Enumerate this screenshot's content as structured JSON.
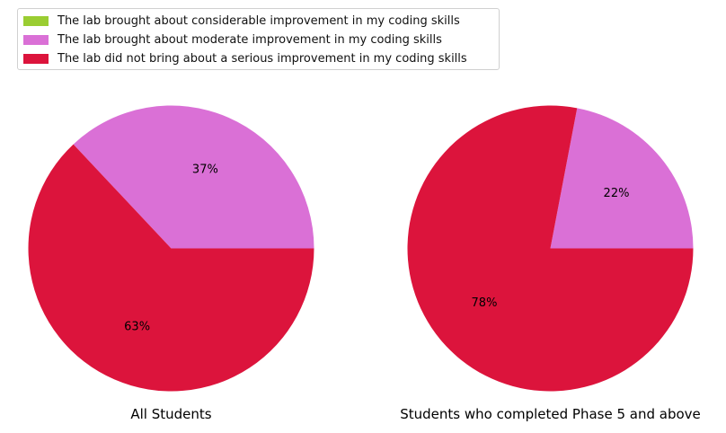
{
  "legend": {
    "items": [
      {
        "label": "The lab brought about considerable improvement in my coding skills",
        "color": "#9acd32"
      },
      {
        "label": "The lab brought about moderate improvement in my coding skills",
        "color": "#da70d6"
      },
      {
        "label": "The lab did not bring about a serious improvement in my coding skills",
        "color": "#dc143c"
      }
    ]
  },
  "chart_data": [
    {
      "type": "pie",
      "title": "All Students",
      "categories": [
        "The lab brought about considerable improvement in my coding skills",
        "The lab brought about moderate improvement in my coding skills",
        "The lab did not bring about a serious improvement in my coding skills"
      ],
      "values": [
        0,
        37,
        63
      ],
      "labels": [
        "0%",
        "37%",
        "63%"
      ],
      "colors": [
        "#9acd32",
        "#da70d6",
        "#dc143c"
      ]
    },
    {
      "type": "pie",
      "title": "Students who completed Phase 5 and above",
      "categories": [
        "The lab brought about considerable improvement in my coding skills",
        "The lab brought about moderate improvement in my coding skills",
        "The lab did not bring about a serious improvement in my coding skills"
      ],
      "values": [
        0,
        22,
        78
      ],
      "labels": [
        "0%",
        "22%",
        "78%"
      ],
      "colors": [
        "#9acd32",
        "#da70d6",
        "#dc143c"
      ]
    }
  ]
}
